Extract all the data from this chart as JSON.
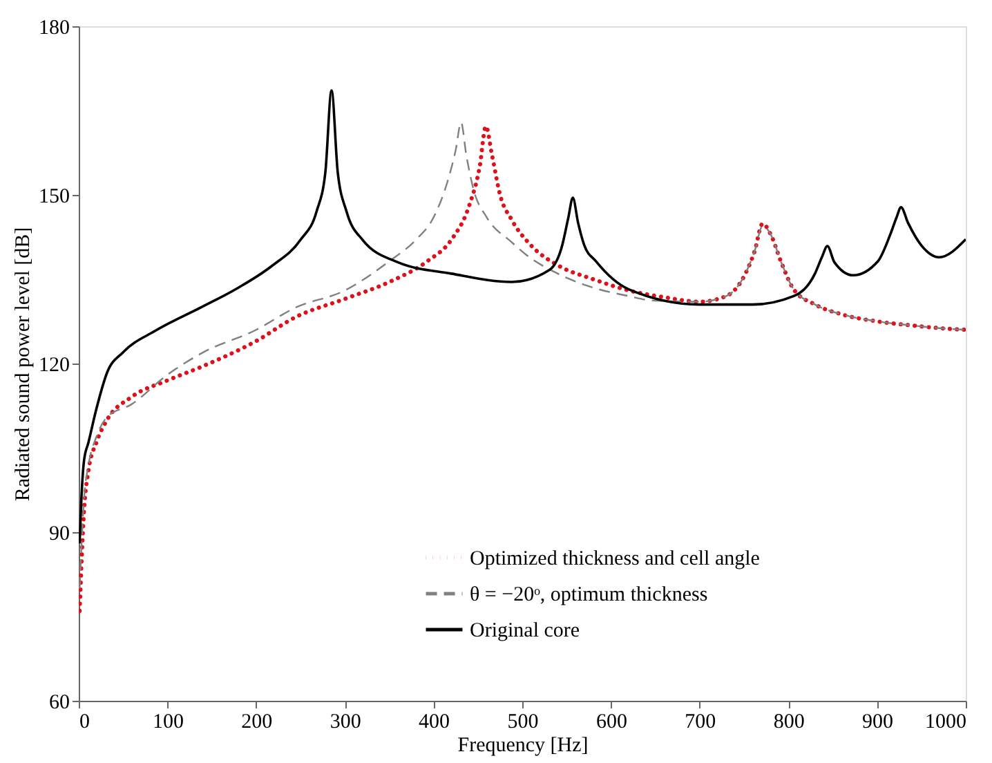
{
  "chart_data": {
    "type": "line",
    "xlabel": "Frequency [Hz]",
    "ylabel": "Radiated sound power level [dB]",
    "xlim": [
      0,
      1000
    ],
    "ylim": [
      60,
      180
    ],
    "xticks": [
      0,
      100,
      200,
      300,
      400,
      500,
      600,
      700,
      800,
      900,
      1000
    ],
    "yticks": [
      60,
      90,
      120,
      150,
      180
    ],
    "grid": false,
    "legend": "bottom",
    "series": [
      {
        "name": "Optimized thickness and cell angle",
        "color": "#e0101a",
        "line_style": "dotted",
        "x": [
          1,
          6,
          11,
          20,
          32,
          59,
          100,
          138,
          200,
          245,
          300,
          350,
          393,
          420,
          440,
          452,
          459,
          466,
          475,
          488,
          510,
          541,
          580,
          620,
          660,
          700,
          730,
          750,
          762,
          771,
          780,
          792,
          806,
          830,
          859,
          900,
          938,
          970,
          1000
        ],
        "values": [
          76,
          94,
          101,
          106,
          110,
          114,
          117,
          119.4,
          124,
          128.3,
          131.5,
          134.5,
          138.2,
          142,
          148,
          155,
          162.2,
          157,
          150,
          145.6,
          141,
          137.4,
          135,
          133,
          131.8,
          131,
          132,
          135.5,
          140,
          144.9,
          143,
          138,
          133.2,
          130.5,
          128.8,
          127.5,
          126.8,
          126.3,
          126
        ]
      },
      {
        "name": "θ = −20ᵒ, optimum thickness",
        "color": "#808080",
        "line_style": "dashed",
        "x": [
          1,
          6,
          11,
          20,
          32,
          59,
          100,
          138,
          200,
          245,
          300,
          350,
          380,
          400,
          415,
          425,
          431,
          437,
          445,
          460,
          488,
          504,
          540,
          580,
          620,
          647,
          700,
          730,
          750,
          762,
          771,
          780,
          792,
          806,
          830,
          859,
          900,
          938,
          970,
          1000
        ],
        "values": [
          80,
          96,
          102,
          107,
          110.5,
          112.7,
          118,
          121.8,
          126,
          130,
          133,
          138.2,
          142,
          146,
          152,
          158,
          162.9,
          157,
          151,
          146,
          141.6,
          139.4,
          136,
          133.5,
          132,
          131.2,
          131,
          132,
          135.5,
          140,
          144.5,
          143,
          138,
          133.2,
          130.5,
          128.8,
          127.5,
          126.8,
          126.3,
          126
        ]
      },
      {
        "name": "Original core",
        "color": "#000000",
        "line_style": "solid",
        "x": [
          1,
          3,
          6,
          11,
          20,
          32,
          50,
          86,
          138,
          180,
          218,
          250,
          268,
          278,
          285,
          292,
          302,
          320,
          360,
          420,
          488,
          531,
          545,
          552,
          557,
          563,
          570,
          583,
          620,
          700,
          760,
          806,
          830,
          838,
          844,
          852,
          873,
          901,
          915,
          922,
          927,
          935,
          950,
          970,
          1000
        ],
        "values": [
          88,
          96,
          102.8,
          106,
          112,
          118.4,
          122,
          125.8,
          130,
          133.5,
          137.4,
          142,
          147,
          154,
          168.6,
          154,
          147,
          142,
          138,
          136,
          134.5,
          136.7,
          141,
          146,
          149.5,
          145,
          141,
          138.2,
          133.2,
          130.5,
          130.5,
          132,
          136,
          139,
          140.9,
          138,
          135.7,
          138.2,
          143,
          146,
          147.8,
          145,
          141,
          138.9,
          142.1
        ]
      }
    ]
  }
}
